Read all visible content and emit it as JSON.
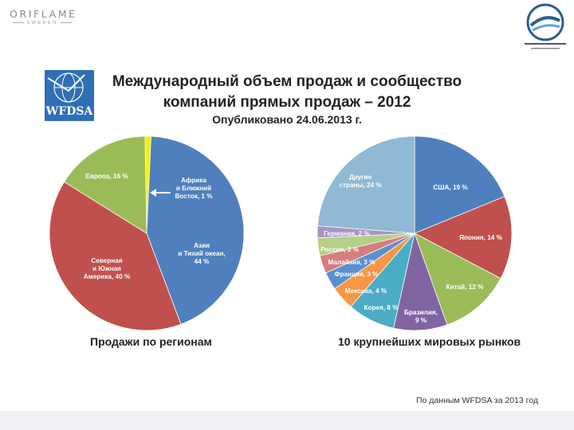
{
  "header": {
    "brand_word": "ORIFLAME",
    "brand_sub": "SWEDEN",
    "wfdsa_logo_text": "WFDSA"
  },
  "title": {
    "line1": "Международный объем продаж и сообщество",
    "line2": "компаний прямых продаж – 2012",
    "subtitle": "Опубликовано 24.06.2013 г."
  },
  "source": "По данным WFDSA за 2013 год",
  "colors": {
    "blue": "#4f80bd",
    "red": "#c0504d",
    "green": "#9bbb59",
    "yellow": "#f2f200",
    "purple": "#8064a2",
    "teal": "#4bacc6",
    "orange": "#f79646",
    "lightblue": "#8fb9d4"
  },
  "chart_data": [
    {
      "type": "pie",
      "title": "Продажи по регионам",
      "slices": [
        {
          "label_lines": [
            "Африка",
            "и Ближний",
            "Восток, 1 %"
          ],
          "value": 1,
          "color": "#f2f200"
        },
        {
          "label_lines": [
            "Азия",
            "и Тихий океан,",
            "44 %"
          ],
          "value": 44,
          "color": "#4f80bd"
        },
        {
          "label_lines": [
            "Северная",
            "и Южная",
            "Америка, 40 %"
          ],
          "value": 40,
          "color": "#c0504d"
        },
        {
          "label_lines": [
            "Европа, 16 %"
          ],
          "value": 16,
          "color": "#9bbb59"
        }
      ]
    },
    {
      "type": "pie",
      "title": "10 крупнейших мировых рынков",
      "slices": [
        {
          "label_lines": [
            "США, 19 %"
          ],
          "value": 19,
          "color": "#4f80bd"
        },
        {
          "label_lines": [
            "Япония, 14 %"
          ],
          "value": 14,
          "color": "#c0504d"
        },
        {
          "label_lines": [
            "Китай, 12 %"
          ],
          "value": 12,
          "color": "#9bbb59"
        },
        {
          "label_lines": [
            "Бразилия,",
            "9 %"
          ],
          "value": 9,
          "color": "#8064a2"
        },
        {
          "label_lines": [
            "Корея, 8 %"
          ],
          "value": 8,
          "color": "#4bacc6"
        },
        {
          "label_lines": [
            "Мексика, 4 %"
          ],
          "value": 4,
          "color": "#f79646"
        },
        {
          "label_lines": [
            "Франция, 3 %"
          ],
          "value": 3,
          "color": "#5a8fd1"
        },
        {
          "label_lines": [
            "Малайзия, 3 %"
          ],
          "value": 3,
          "color": "#d37f7d"
        },
        {
          "label_lines": [
            "Россия, 3 %"
          ],
          "value": 3,
          "color": "#b4cf86"
        },
        {
          "label_lines": [
            "Германия, 2 %"
          ],
          "value": 2,
          "color": "#a894c2"
        },
        {
          "label_lines": [
            "Другие",
            "страны, 24 %"
          ],
          "value": 24,
          "color": "#8fb9d4"
        }
      ]
    }
  ]
}
